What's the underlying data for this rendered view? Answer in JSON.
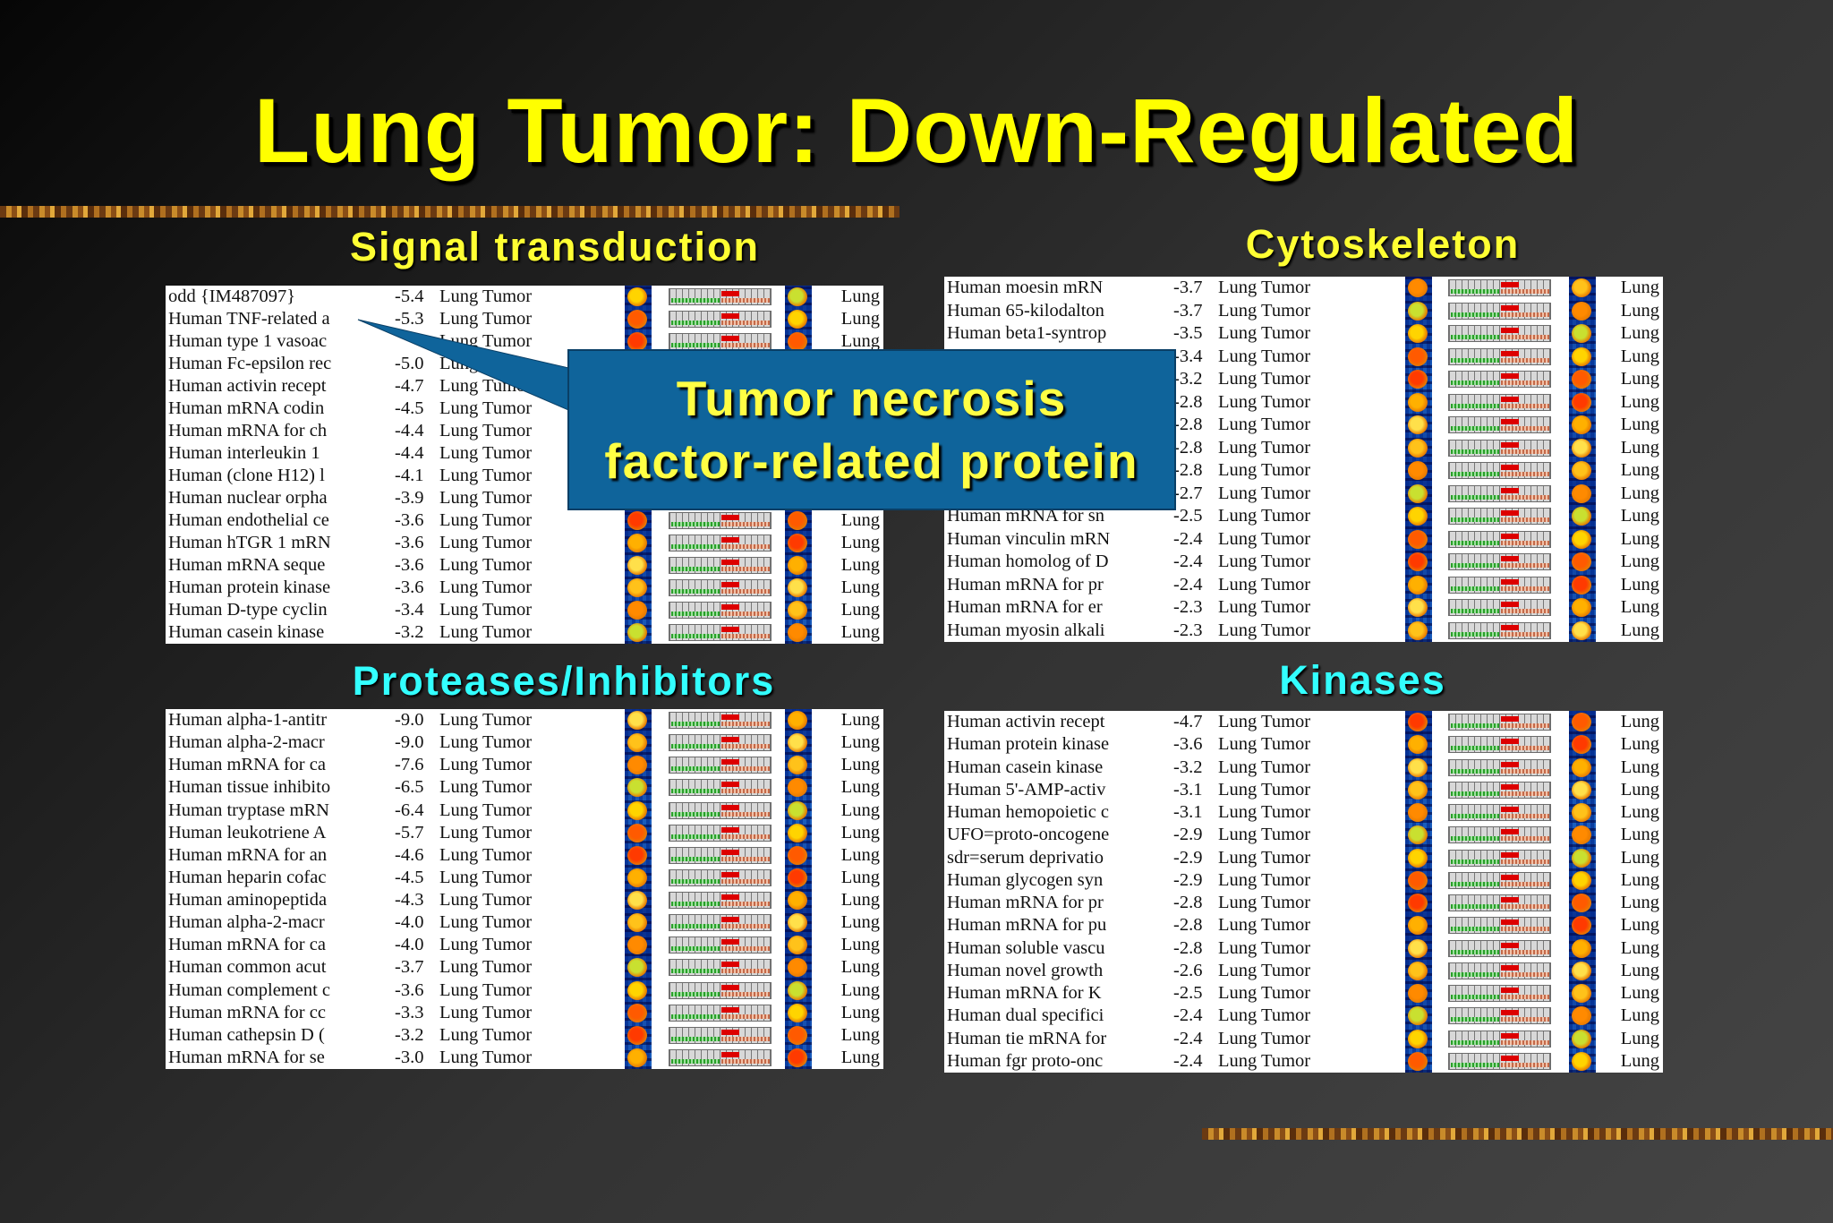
{
  "title": "Lung Tumor: Down-Regulated",
  "callout": {
    "line1": "Tumor necrosis",
    "line2": "factor-related protein"
  },
  "tumor_label": "Lung Tumor",
  "lung_label": "Lung",
  "colors": {
    "title": "#ffff00",
    "section_yellow": "#ffff33",
    "section_cyan": "#33ffff",
    "callout_bg": "#0f649b"
  },
  "sections": [
    {
      "id": "signal",
      "title": "Signal transduction",
      "title_color": "yellow",
      "rows": [
        {
          "name": "odd {IM487097}",
          "value": "-5.4"
        },
        {
          "name": "Human TNF-related a",
          "value": "-5.3"
        },
        {
          "name": "Human type 1 vasoac",
          "value": ""
        },
        {
          "name": "Human Fc-epsilon rec",
          "value": "-5.0"
        },
        {
          "name": "Human activin recept",
          "value": "-4.7"
        },
        {
          "name": "Human mRNA codin",
          "value": "-4.5"
        },
        {
          "name": "Human mRNA for ch",
          "value": "-4.4"
        },
        {
          "name": "Human interleukin 1",
          "value": "-4.4"
        },
        {
          "name": "Human (clone H12) l",
          "value": "-4.1"
        },
        {
          "name": "Human nuclear orpha",
          "value": "-3.9"
        },
        {
          "name": "Human endothelial ce",
          "value": "-3.6"
        },
        {
          "name": "Human hTGR 1 mRN",
          "value": "-3.6"
        },
        {
          "name": "Human mRNA seque",
          "value": "-3.6"
        },
        {
          "name": "Human protein kinase",
          "value": "-3.6"
        },
        {
          "name": "Human D-type cyclin",
          "value": "-3.4"
        },
        {
          "name": "Human casein kinase",
          "value": "-3.2"
        }
      ]
    },
    {
      "id": "cyto",
      "title": "Cytoskeleton",
      "title_color": "yellow",
      "rows": [
        {
          "name": "Human moesin mRN",
          "value": "-3.7"
        },
        {
          "name": "Human 65-kilodalton",
          "value": "-3.7"
        },
        {
          "name": "Human beta1-syntrop",
          "value": "-3.5"
        },
        {
          "name": "",
          "value": "-3.4"
        },
        {
          "name": "",
          "value": "-3.2"
        },
        {
          "name": "",
          "value": "-2.8"
        },
        {
          "name": "",
          "value": "-2.8"
        },
        {
          "name": "",
          "value": "-2.8"
        },
        {
          "name": "",
          "value": "-2.8"
        },
        {
          "name": "",
          "value": "-2.7"
        },
        {
          "name": "Human mRNA for sn",
          "value": "-2.5"
        },
        {
          "name": "Human vinculin mRN",
          "value": "-2.4"
        },
        {
          "name": "Human homolog of D",
          "value": "-2.4"
        },
        {
          "name": "Human mRNA for pr",
          "value": "-2.4"
        },
        {
          "name": "Human mRNA for er",
          "value": "-2.3"
        },
        {
          "name": "Human myosin alkali",
          "value": "-2.3"
        }
      ]
    },
    {
      "id": "proteases",
      "title": "Proteases/Inhibitors",
      "title_color": "cyan",
      "rows": [
        {
          "name": "Human alpha-1-antitr",
          "value": "-9.0"
        },
        {
          "name": "Human alpha-2-macr",
          "value": "-9.0"
        },
        {
          "name": "Human mRNA for ca",
          "value": "-7.6"
        },
        {
          "name": "Human tissue inhibito",
          "value": "-6.5"
        },
        {
          "name": "Human tryptase mRN",
          "value": "-6.4"
        },
        {
          "name": "Human leukotriene A",
          "value": "-5.7"
        },
        {
          "name": "Human mRNA for an",
          "value": "-4.6"
        },
        {
          "name": "Human heparin cofac",
          "value": "-4.5"
        },
        {
          "name": "Human aminopeptida",
          "value": "-4.3"
        },
        {
          "name": "Human alpha-2-macr",
          "value": "-4.0"
        },
        {
          "name": "Human mRNA for ca",
          "value": "-4.0"
        },
        {
          "name": "Human common acut",
          "value": "-3.7"
        },
        {
          "name": "Human complement c",
          "value": "-3.6"
        },
        {
          "name": "Human mRNA for cc",
          "value": "-3.3"
        },
        {
          "name": "Human cathepsin D (",
          "value": "-3.2"
        },
        {
          "name": "Human mRNA for se",
          "value": "-3.0"
        }
      ]
    },
    {
      "id": "kinases",
      "title": "Kinases",
      "title_color": "cyan",
      "rows": [
        {
          "name": "Human activin recept",
          "value": "-4.7"
        },
        {
          "name": "Human protein kinase",
          "value": "-3.6"
        },
        {
          "name": "Human casein kinase",
          "value": "-3.2"
        },
        {
          "name": "Human 5'-AMP-activ",
          "value": "-3.1"
        },
        {
          "name": "Human hemopoietic c",
          "value": "-3.1"
        },
        {
          "name": "UFO=proto-oncogene",
          "value": "-2.9"
        },
        {
          "name": "sdr=serum deprivatio",
          "value": "-2.9"
        },
        {
          "name": "Human glycogen syn",
          "value": "-2.9"
        },
        {
          "name": "Human mRNA for pr",
          "value": "-2.8"
        },
        {
          "name": "Human mRNA for pu",
          "value": "-2.8"
        },
        {
          "name": "Human soluble vascu",
          "value": "-2.8"
        },
        {
          "name": "Human novel growth",
          "value": "-2.6"
        },
        {
          "name": "Human mRNA for K",
          "value": "-2.5"
        },
        {
          "name": "Human dual specifici",
          "value": "-2.4"
        },
        {
          "name": "Human tie mRNA for",
          "value": "-2.4"
        },
        {
          "name": "Human fgr proto-onc",
          "value": "-2.4"
        }
      ]
    }
  ]
}
